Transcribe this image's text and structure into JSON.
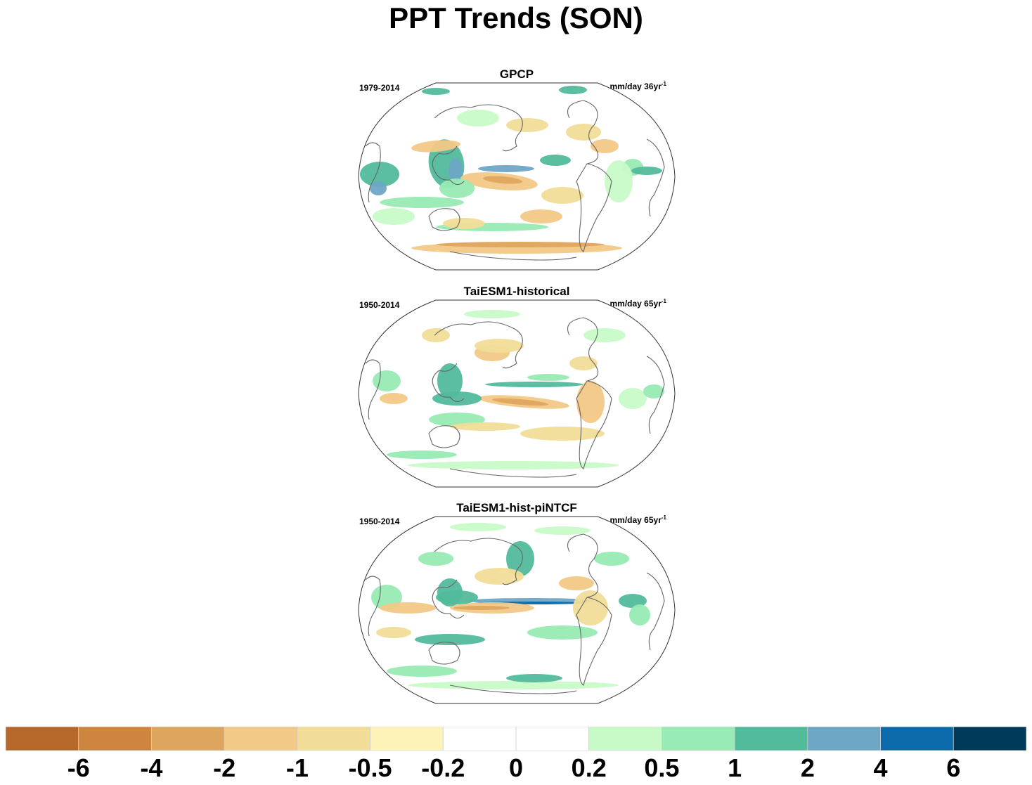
{
  "figure": {
    "title": "PPT Trends (SON)"
  },
  "panels": [
    {
      "title": "GPCP",
      "period": "1979-2014",
      "units": "mm/day 36yr",
      "units_sup": "-1"
    },
    {
      "title": "TaiESM1-historical",
      "period": "1950-2014",
      "units": "mm/day 65yr",
      "units_sup": "-1"
    },
    {
      "title": "TaiESM1-hist-piNTCF",
      "period": "1950-2014",
      "units": "mm/day 65yr",
      "units_sup": "-1"
    }
  ],
  "colorbar": {
    "colors": [
      "#b5682a",
      "#cd853f",
      "#dea55f",
      "#f2c987",
      "#f1dd98",
      "#fdf3b8",
      "#ffffff",
      "#ffffff",
      "#c8fac8",
      "#98ebb4",
      "#52bb9b",
      "#6ea6c6",
      "#0b6aa9",
      "#003a5a"
    ],
    "labels": [
      "-6",
      "-4",
      "-2",
      "-1",
      "-0.5",
      "-0.2",
      "0",
      "0.2",
      "0.5",
      "1",
      "2",
      "4",
      "6"
    ]
  },
  "map": {
    "projection": "Robinson (Pacific-centered)",
    "variable": "precipitation trend"
  }
}
